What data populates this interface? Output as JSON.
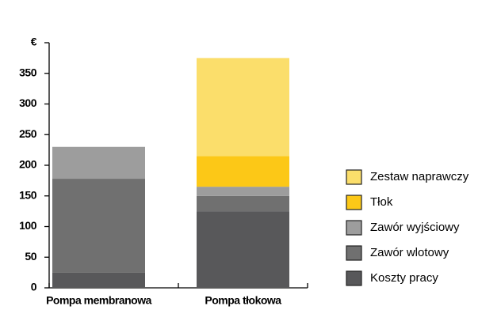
{
  "chart_data": {
    "type": "stacked_bar",
    "categories": [
      "Pompa membranowa",
      "Pompa tłokowa"
    ],
    "series": [
      {
        "name": "Koszty pracy",
        "color": "#58585a",
        "values": [
          25,
          125
        ]
      },
      {
        "name": "Zawór wlotowy",
        "color": "#707070",
        "values": [
          153,
          25
        ]
      },
      {
        "name": "Zawór wyjściowy",
        "color": "#9d9d9d",
        "values": [
          52,
          15
        ]
      },
      {
        "name": "Tłok",
        "color": "#fcc817",
        "values": [
          0,
          50
        ]
      },
      {
        "name": "Zestaw naprawczy",
        "color": "#fbde6b",
        "values": [
          0,
          160
        ]
      }
    ],
    "ylim": [
      0,
      400
    ],
    "yticks": [
      0,
      50,
      100,
      150,
      200,
      250,
      300,
      350,
      {
        "value": 400,
        "label": "€"
      }
    ],
    "legend": "right"
  }
}
